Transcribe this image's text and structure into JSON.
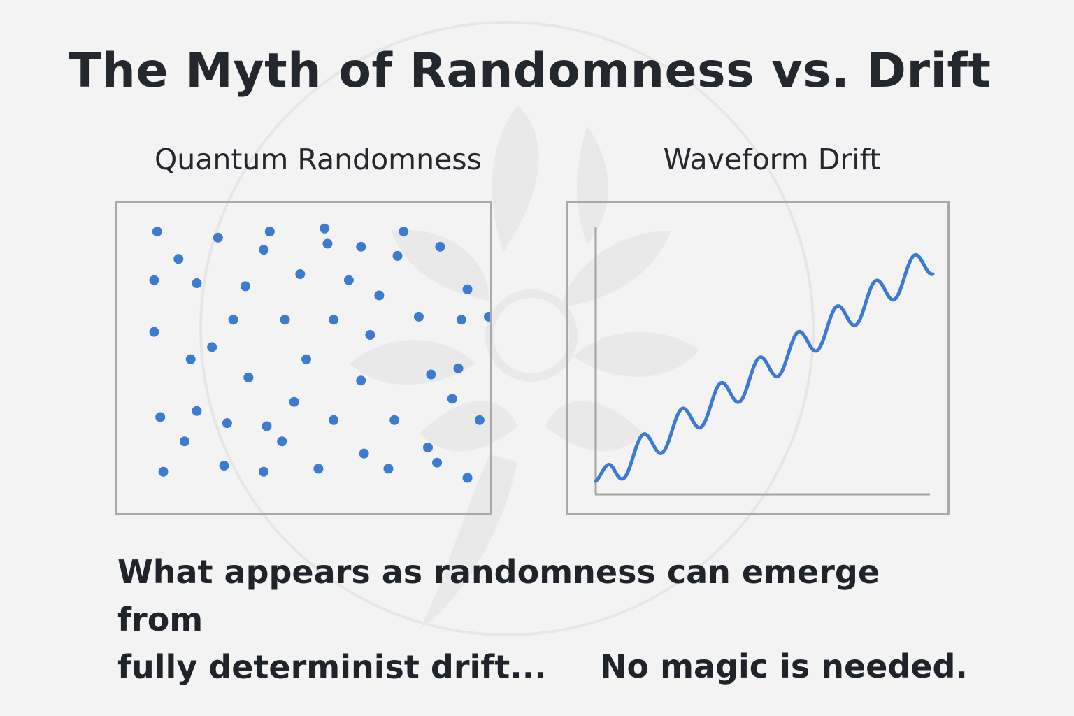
{
  "title": "The Myth of Randomness vs. Drift",
  "panels": {
    "left": {
      "title": "Quantum Randomness"
    },
    "right": {
      "title": "Waveform Drift"
    }
  },
  "caption": {
    "line1": "What appears as randomness can emerge from",
    "line2": "fully determinist drift..."
  },
  "conclusion": "No magic is needed.",
  "colors": {
    "background": "#f3f3f3",
    "accent": "#3d7bd0",
    "frame": "#a9a9a9",
    "axis": "#a3a3a3",
    "text": "#23282f"
  },
  "chart_data": [
    {
      "type": "scatter",
      "title": "Quantum Randomness",
      "points": [
        [
          11,
          6
        ],
        [
          31,
          8
        ],
        [
          48,
          6
        ],
        [
          66,
          5
        ],
        [
          92,
          6
        ],
        [
          18,
          15
        ],
        [
          46,
          12
        ],
        [
          67,
          10
        ],
        [
          78,
          11
        ],
        [
          90,
          14
        ],
        [
          104,
          11
        ],
        [
          10,
          22
        ],
        [
          24,
          23
        ],
        [
          40,
          24
        ],
        [
          58,
          20
        ],
        [
          74,
          22
        ],
        [
          84,
          27
        ],
        [
          113,
          25
        ],
        [
          10,
          39
        ],
        [
          36,
          35
        ],
        [
          53,
          35
        ],
        [
          29,
          44
        ],
        [
          69,
          35
        ],
        [
          81,
          40
        ],
        [
          97,
          34
        ],
        [
          111,
          35
        ],
        [
          120,
          34
        ],
        [
          22,
          48
        ],
        [
          60,
          48
        ],
        [
          41,
          54
        ],
        [
          78,
          55
        ],
        [
          101,
          53
        ],
        [
          110,
          51
        ],
        [
          12,
          67
        ],
        [
          24,
          65
        ],
        [
          34,
          69
        ],
        [
          47,
          70
        ],
        [
          56,
          62
        ],
        [
          69,
          68
        ],
        [
          89,
          68
        ],
        [
          108,
          61
        ],
        [
          117,
          68
        ],
        [
          20,
          75
        ],
        [
          52,
          75
        ],
        [
          79,
          79
        ],
        [
          100,
          77
        ],
        [
          103,
          82
        ],
        [
          13,
          85
        ],
        [
          33,
          83
        ],
        [
          46,
          85
        ],
        [
          64,
          84
        ],
        [
          87,
          84
        ],
        [
          113,
          87
        ]
      ]
    },
    {
      "type": "line",
      "title": "Waveform Drift",
      "trend_start": 0.5,
      "trend_end": 10,
      "cycles": 8.7,
      "amplitude": 0.35
    }
  ]
}
